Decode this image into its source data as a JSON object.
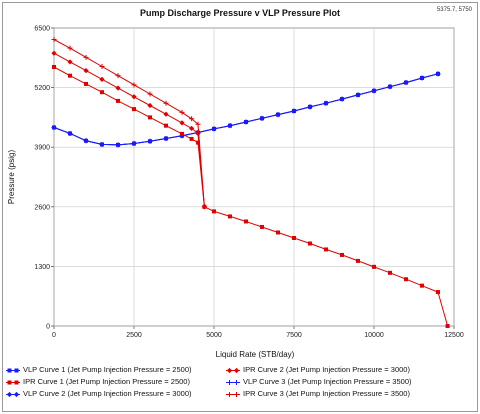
{
  "window": {
    "corner_readout": "5375.7, 5750"
  },
  "chart_data": {
    "type": "line",
    "title": "Pump Discharge Pressure v VLP Pressure Plot",
    "xlabel": "Liquid Rate  (STB/day)",
    "ylabel": "Pressure  (psig)",
    "xlim": [
      0,
      12500
    ],
    "ylim": [
      0,
      6500
    ],
    "xticks": [
      0,
      2500,
      5000,
      7500,
      10000,
      12500
    ],
    "yticks": [
      0,
      1300,
      2600,
      3900,
      5200,
      6500
    ],
    "grid": true,
    "legend_position": "bottom",
    "series": [
      {
        "name": "VLP Curve 1 (Jet Pump Injection Pressure = 2500)",
        "color": "#1a1aff",
        "marker": "square",
        "x": [
          0,
          500,
          1000,
          1500,
          2000,
          2500,
          3000,
          3500,
          4000,
          4500,
          5000,
          5500,
          6000,
          6500,
          7000,
          7500,
          8000,
          8500,
          9000,
          9500,
          10000,
          10500,
          11000,
          11500,
          12000
        ],
        "y": [
          4330,
          4200,
          4040,
          3960,
          3950,
          3980,
          4030,
          4090,
          4150,
          4220,
          4300,
          4370,
          4450,
          4530,
          4610,
          4690,
          4780,
          4860,
          4950,
          5040,
          5130,
          5220,
          5310,
          5410,
          5500
        ]
      },
      {
        "name": "VLP Curve 2 (Jet Pump Injection Pressure = 3000)",
        "color": "#1a1aff",
        "marker": "diamond",
        "x": [
          0,
          500,
          1000,
          1500,
          2000,
          2500,
          3000,
          3500,
          4000,
          4500,
          5000,
          5500,
          6000,
          6500,
          7000,
          7500,
          8000,
          8500,
          9000,
          9500,
          10000,
          10500,
          11000,
          11500,
          12000
        ],
        "y": [
          4330,
          4200,
          4040,
          3960,
          3950,
          3980,
          4030,
          4090,
          4150,
          4220,
          4300,
          4370,
          4450,
          4530,
          4610,
          4690,
          4780,
          4860,
          4950,
          5040,
          5130,
          5220,
          5310,
          5410,
          5500
        ]
      },
      {
        "name": "VLP Curve 3 (Jet Pump Injection Pressure = 3500)",
        "color": "#1a1aff",
        "marker": "plus",
        "x": [
          0,
          500,
          1000,
          1500,
          2000,
          2500,
          3000,
          3500,
          4000,
          4500,
          5000,
          5500,
          6000,
          6500,
          7000,
          7500,
          8000,
          8500,
          9000,
          9500,
          10000,
          10500,
          11000,
          11500,
          12000
        ],
        "y": [
          4330,
          4200,
          4040,
          3960,
          3950,
          3980,
          4030,
          4090,
          4150,
          4220,
          4300,
          4370,
          4450,
          4530,
          4610,
          4690,
          4780,
          4860,
          4950,
          5040,
          5130,
          5220,
          5310,
          5410,
          5500
        ]
      },
      {
        "name": "IPR Curve 1 (Jet Pump Injection Pressure = 2500)",
        "color": "#e00000",
        "marker": "square",
        "x": [
          0,
          500,
          1000,
          1500,
          2000,
          2500,
          3000,
          3500,
          4000,
          4300,
          4500,
          4700,
          5000,
          5500,
          6000,
          6500,
          7000,
          7500,
          8000,
          8500,
          9000,
          9500,
          10000,
          10500,
          11000,
          11500,
          12000,
          12300
        ],
        "y": [
          5650,
          5460,
          5280,
          5100,
          4910,
          4730,
          4550,
          4370,
          4190,
          4080,
          4000,
          2600,
          2500,
          2390,
          2280,
          2160,
          2040,
          1920,
          1800,
          1670,
          1550,
          1420,
          1290,
          1160,
          1020,
          880,
          740,
          0
        ]
      },
      {
        "name": "IPR Curve 2 (Jet Pump Injection Pressure = 3000)",
        "color": "#e00000",
        "marker": "diamond",
        "x": [
          0,
          500,
          1000,
          1500,
          2000,
          2500,
          3000,
          3500,
          4000,
          4300,
          4500,
          4700
        ],
        "y": [
          5950,
          5760,
          5570,
          5380,
          5190,
          5000,
          4810,
          4620,
          4430,
          4310,
          4200,
          2600
        ]
      },
      {
        "name": "IPR Curve 3 (Jet Pump Injection Pressure = 3500)",
        "color": "#e00000",
        "marker": "plus",
        "x": [
          0,
          500,
          1000,
          1500,
          2000,
          2500,
          3000,
          3500,
          4000,
          4300,
          4500,
          4700
        ],
        "y": [
          6250,
          6060,
          5860,
          5660,
          5460,
          5260,
          5060,
          4860,
          4660,
          4520,
          4400,
          2600
        ]
      }
    ]
  },
  "legend": {
    "items": [
      {
        "label": "VLP Curve 1 (Jet Pump Injection Pressure = 2500)",
        "color": "#1a1aff",
        "marker": "square"
      },
      {
        "label": "IPR Curve 2 (Jet Pump Injection Pressure = 3000)",
        "color": "#e00000",
        "marker": "diamond"
      },
      {
        "label": "IPR Curve 1 (Jet Pump Injection Pressure = 2500)",
        "color": "#e00000",
        "marker": "square"
      },
      {
        "label": "VLP Curve 3 (Jet Pump Injection Pressure = 3500)",
        "color": "#1a1aff",
        "marker": "plus"
      },
      {
        "label": "VLP Curve 2 (Jet Pump Injection Pressure = 3000)",
        "color": "#1a1aff",
        "marker": "diamond"
      },
      {
        "label": "IPR Curve 3 (Jet Pump Injection Pressure = 3500)",
        "color": "#e00000",
        "marker": "plus"
      }
    ]
  }
}
